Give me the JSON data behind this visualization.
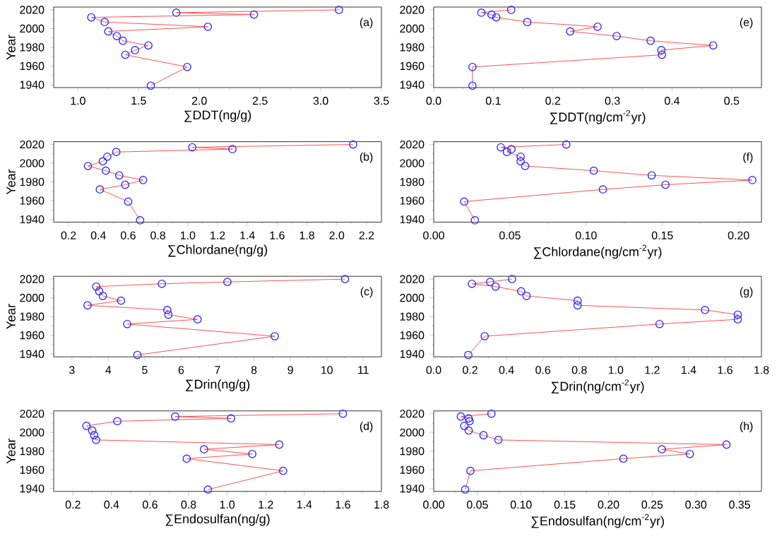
{
  "chart_data": [
    {
      "type": "line",
      "xlabel": "∑DDT(ng/g)",
      "ylabel": "Year",
      "annotations": [
        "(a)"
      ],
      "color": "#ff5050",
      "marker": "circle",
      "line_style": "solid",
      "x": [
        3.15,
        1.81,
        2.45,
        1.11,
        1.22,
        2.07,
        1.25,
        1.32,
        1.37,
        1.58,
        1.47,
        1.39,
        1.9,
        1.6
      ],
      "values": [
        2020,
        2017,
        2015,
        2012,
        2007,
        2002,
        1997,
        1992,
        1987,
        1982,
        1977,
        1972,
        1959,
        1939
      ],
      "xlim": [
        0.8,
        3.5
      ],
      "xticks": [
        {
          "value": 1,
          "label": "1.0"
        },
        {
          "value": 1.5,
          "label": "1.5"
        },
        {
          "value": 2,
          "label": "2.0"
        },
        {
          "value": 2.5,
          "label": "2.5"
        },
        {
          "value": 3,
          "label": "3.0"
        },
        {
          "value": 3.5,
          "label": "3.5"
        }
      ],
      "ylim": [
        1937,
        2023
      ],
      "yticks": [
        1940,
        1960,
        1980,
        2000,
        2020
      ]
    },
    {
      "type": "line",
      "xlabel": "∑DDT(ng/cm$^{-2}$yr)",
      "annotations": [
        "(e)"
      ],
      "color": "#ff5050",
      "marker": "circle",
      "line_style": "solid",
      "x": [
        0.13,
        0.08,
        0.097,
        0.105,
        0.157,
        0.275,
        0.229,
        0.307,
        0.364,
        0.469,
        0.382,
        0.383,
        0.065,
        0.065
      ],
      "values": [
        2020,
        2017,
        2015,
        2012,
        2007,
        2002,
        1997,
        1992,
        1987,
        1982,
        1977,
        1972,
        1959,
        1939
      ],
      "xlim": [
        0,
        0.55
      ],
      "xticks": [
        {
          "value": 0,
          "label": "0.0"
        },
        {
          "value": 0.1,
          "label": "0.1"
        },
        {
          "value": 0.2,
          "label": "0.2"
        },
        {
          "value": 0.3,
          "label": "0.3"
        },
        {
          "value": 0.4,
          "label": "0.4"
        },
        {
          "value": 0.5,
          "label": "0.5"
        }
      ],
      "ylim": [
        1937,
        2023
      ],
      "yticks": [
        1940,
        1960,
        1980,
        2000,
        2020
      ]
    },
    {
      "type": "line",
      "xlabel": "∑Chlordane(ng/g)",
      "ylabel": "Year",
      "annotations": [
        "(b)"
      ],
      "color": "#ff5050",
      "marker": "circle",
      "line_style": "solid",
      "x": [
        2.11,
        1.03,
        1.3,
        0.52,
        0.46,
        0.43,
        0.33,
        0.45,
        0.54,
        0.7,
        0.58,
        0.41,
        0.6,
        0.68
      ],
      "values": [
        2020,
        2017,
        2015,
        2012,
        2007,
        2002,
        1997,
        1992,
        1987,
        1982,
        1977,
        1972,
        1959,
        1939
      ],
      "xlim": [
        0.1,
        2.3
      ],
      "xticks": [
        {
          "value": 0.2,
          "label": "0.2"
        },
        {
          "value": 0.4,
          "label": "0.4"
        },
        {
          "value": 0.6,
          "label": "0.6"
        },
        {
          "value": 0.8,
          "label": "0.8"
        },
        {
          "value": 1.0,
          "label": "1.0"
        },
        {
          "value": 1.2,
          "label": "1.2"
        },
        {
          "value": 1.4,
          "label": "1.4"
        },
        {
          "value": 1.6,
          "label": "1.6"
        },
        {
          "value": 1.8,
          "label": "1.8"
        },
        {
          "value": 2.0,
          "label": "2.0"
        },
        {
          "value": 2.2,
          "label": "2.2"
        }
      ],
      "ylim": [
        1937,
        2023
      ],
      "yticks": [
        1940,
        1960,
        1980,
        2000,
        2020
      ]
    },
    {
      "type": "line",
      "xlabel": "∑Chlordane(ng/cm$^{-2}$yr)",
      "annotations": [
        "(f)"
      ],
      "color": "#ff5050",
      "marker": "circle",
      "line_style": "solid",
      "x": [
        0.087,
        0.044,
        0.051,
        0.048,
        0.057,
        0.057,
        0.06,
        0.105,
        0.143,
        0.209,
        0.152,
        0.111,
        0.02,
        0.027
      ],
      "values": [
        2020,
        2017,
        2015,
        2012,
        2007,
        2002,
        1997,
        1992,
        1987,
        1982,
        1977,
        1972,
        1959,
        1939
      ],
      "xlim": [
        0,
        0.215
      ],
      "xticks": [
        {
          "value": 0,
          "label": "0.00"
        },
        {
          "value": 0.05,
          "label": "0.05"
        },
        {
          "value": 0.1,
          "label": "0.10"
        },
        {
          "value": 0.15,
          "label": "0.15"
        },
        {
          "value": 0.2,
          "label": "0.20"
        }
      ],
      "ylim": [
        1937,
        2023
      ],
      "yticks": [
        1940,
        1960,
        1980,
        2000,
        2020
      ]
    },
    {
      "type": "line",
      "xlabel": "∑Drin(ng/g)",
      "ylabel": "Year",
      "annotations": [
        "(c)"
      ],
      "color": "#ff5050",
      "marker": "circle",
      "line_style": "solid",
      "x": [
        10.5,
        7.27,
        5.47,
        3.67,
        3.75,
        3.85,
        4.35,
        3.43,
        5.62,
        5.65,
        6.45,
        4.52,
        8.57,
        4.8
      ],
      "values": [
        2020,
        2017,
        2015,
        2012,
        2007,
        2002,
        1997,
        1992,
        1987,
        1982,
        1977,
        1972,
        1959,
        1939
      ],
      "xlim": [
        2.5,
        11.5
      ],
      "xticks": [
        3,
        4,
        5,
        6,
        7,
        8,
        9,
        10,
        11
      ],
      "ylim": [
        1937,
        2023
      ],
      "yticks": [
        1940,
        1960,
        1980,
        2000,
        2020
      ]
    },
    {
      "type": "line",
      "xlabel": "∑Drin(ng/cm$^{-2}$yr)",
      "annotations": [
        "(g)"
      ],
      "color": "#ff5050",
      "marker": "circle",
      "line_style": "solid",
      "x": [
        0.43,
        0.31,
        0.21,
        0.34,
        0.48,
        0.51,
        0.79,
        0.79,
        1.49,
        1.67,
        1.67,
        1.24,
        0.28,
        0.19
      ],
      "values": [
        2020,
        2017,
        2015,
        2012,
        2007,
        2002,
        1997,
        1992,
        1987,
        1982,
        1977,
        1972,
        1959,
        1939
      ],
      "xlim": [
        0,
        1.8
      ],
      "xticks": [
        {
          "value": 0,
          "label": "0.0"
        },
        {
          "value": 0.2,
          "label": "0.2"
        },
        {
          "value": 0.4,
          "label": "0.4"
        },
        {
          "value": 0.6,
          "label": "0.6"
        },
        {
          "value": 0.8,
          "label": "0.8"
        },
        {
          "value": 1.0,
          "label": "1.0"
        },
        {
          "value": 1.2,
          "label": "1.2"
        },
        {
          "value": 1.4,
          "label": "1.4"
        },
        {
          "value": 1.6,
          "label": "1.6"
        },
        {
          "value": 1.8,
          "label": "1.8"
        }
      ],
      "ylim": [
        1937,
        2023
      ],
      "yticks": [
        1940,
        1960,
        1980,
        2000,
        2020
      ]
    },
    {
      "type": "line",
      "xlabel": "∑Endosulfan(ng/g)",
      "ylabel": "Year",
      "annotations": [
        "(d)"
      ],
      "color": "#ff5050",
      "marker": "circle",
      "line_style": "solid",
      "x": [
        1.6,
        0.73,
        1.02,
        0.43,
        0.27,
        0.3,
        0.31,
        0.32,
        1.27,
        0.88,
        1.13,
        0.79,
        1.29,
        0.9
      ],
      "values": [
        2020,
        2017,
        2015,
        2012,
        2007,
        2002,
        1997,
        1992,
        1987,
        1982,
        1977,
        1972,
        1959,
        1939
      ],
      "xlim": [
        0.1,
        1.8
      ],
      "xticks": [
        {
          "value": 0.2,
          "label": "0.2"
        },
        {
          "value": 0.4,
          "label": "0.4"
        },
        {
          "value": 0.6,
          "label": "0.6"
        },
        {
          "value": 0.8,
          "label": "0.8"
        },
        {
          "value": 1.0,
          "label": "1.0"
        },
        {
          "value": 1.2,
          "label": "1.2"
        },
        {
          "value": 1.4,
          "label": "1.4"
        },
        {
          "value": 1.6,
          "label": "1.6"
        },
        {
          "value": 1.8,
          "label": "1.8"
        }
      ],
      "ylim": [
        1937,
        2023
      ],
      "yticks": [
        1940,
        1960,
        1980,
        2000,
        2020
      ]
    },
    {
      "type": "line",
      "xlabel": "∑Endosulfan(ng/cm$^{-2}$yr)",
      "annotations": [
        "(h)"
      ],
      "color": "#ff5050",
      "marker": "circle",
      "line_style": "solid",
      "x": [
        0.066,
        0.031,
        0.04,
        0.041,
        0.035,
        0.04,
        0.057,
        0.074,
        0.335,
        0.261,
        0.293,
        0.217,
        0.042,
        0.036
      ],
      "values": [
        2020,
        2017,
        2015,
        2012,
        2007,
        2002,
        1997,
        1992,
        1987,
        1982,
        1977,
        1972,
        1959,
        1939
      ],
      "xlim": [
        0,
        0.375
      ],
      "xticks": [
        {
          "value": 0,
          "label": "0.00"
        },
        {
          "value": 0.05,
          "label": "0.05"
        },
        {
          "value": 0.1,
          "label": "0.10"
        },
        {
          "value": 0.15,
          "label": "0.15"
        },
        {
          "value": 0.2,
          "label": "0.20"
        },
        {
          "value": 0.25,
          "label": "0.25"
        },
        {
          "value": 0.3,
          "label": "0.30"
        },
        {
          "value": 0.35,
          "label": "0.35"
        }
      ],
      "ylim": [
        1937,
        2023
      ],
      "yticks": [
        1940,
        1960,
        1980,
        2000,
        2020
      ]
    }
  ]
}
